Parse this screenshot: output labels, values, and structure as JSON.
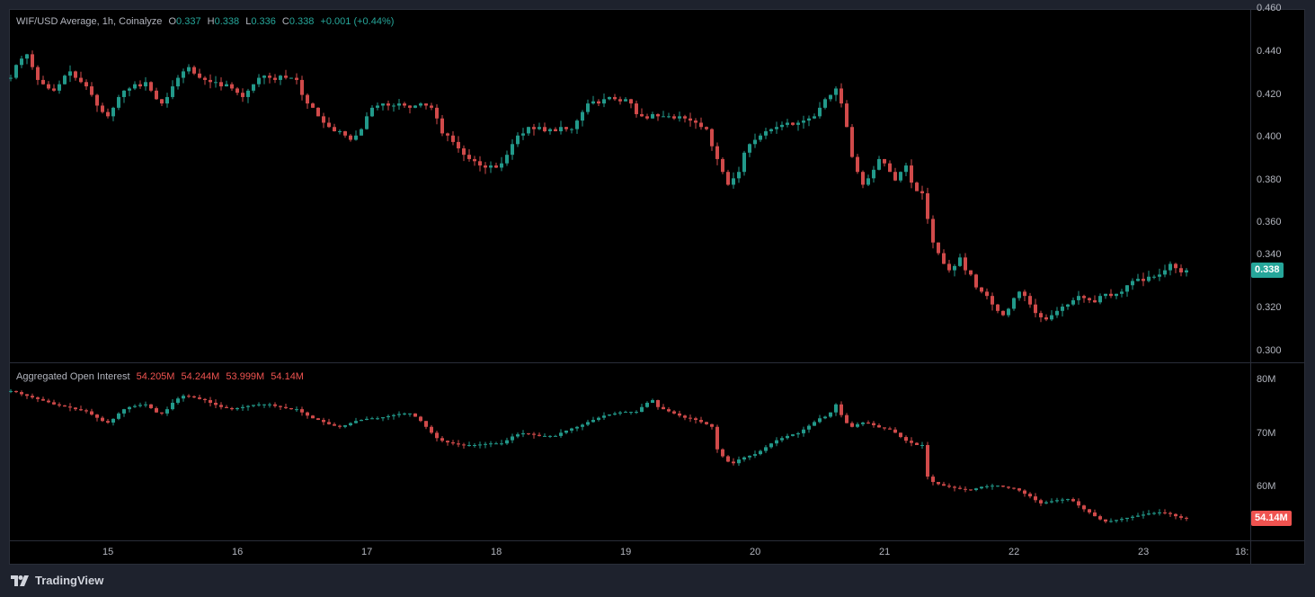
{
  "colors": {
    "up": "#22998a",
    "down": "#d04a4a",
    "up_badge": "#26a69a",
    "down_badge": "#ef5350"
  },
  "price_legend": {
    "title": "WIF/USD Average, 1h, Coinalyze",
    "o_label": "O",
    "o": "0.337",
    "h_label": "H",
    "h": "0.338",
    "l_label": "L",
    "l": "0.336",
    "c_label": "C",
    "c": "0.338",
    "change": "+0.001 (+0.44%)"
  },
  "oi_legend": {
    "title": "Aggregated Open Interest",
    "values": [
      "54.205M",
      "54.244M",
      "53.999M",
      "54.14M"
    ]
  },
  "footer": {
    "brand": "TradingView"
  },
  "chart_data": [
    {
      "type": "candlestick",
      "title": "WIF/USD Average, 1h, Coinalyze",
      "interval": "1h",
      "ylim": [
        0.3,
        0.46
      ],
      "y_ticks": [
        "0.300",
        "0.320",
        "0.340",
        "0.360",
        "0.380",
        "0.400",
        "0.420",
        "0.440",
        "0.460"
      ],
      "last_value_label": "0.338",
      "last_value": 0.338,
      "close": [
        0.428,
        0.434,
        0.437,
        0.439,
        0.433,
        0.427,
        0.425,
        0.423,
        0.422,
        0.425,
        0.429,
        0.431,
        0.428,
        0.426,
        0.424,
        0.42,
        0.415,
        0.412,
        0.41,
        0.414,
        0.419,
        0.422,
        0.423,
        0.425,
        0.424,
        0.426,
        0.422,
        0.418,
        0.416,
        0.419,
        0.424,
        0.428,
        0.431,
        0.433,
        0.43,
        0.428,
        0.427,
        0.426,
        0.426,
        0.424,
        0.425,
        0.423,
        0.421,
        0.419,
        0.422,
        0.425,
        0.428,
        0.429,
        0.428,
        0.427,
        0.429,
        0.428,
        0.428,
        0.427,
        0.42,
        0.416,
        0.414,
        0.41,
        0.407,
        0.405,
        0.403,
        0.403,
        0.401,
        0.399,
        0.401,
        0.404,
        0.41,
        0.414,
        0.415,
        0.416,
        0.415,
        0.415,
        0.416,
        0.415,
        0.414,
        0.415,
        0.416,
        0.415,
        0.414,
        0.409,
        0.402,
        0.401,
        0.398,
        0.395,
        0.392,
        0.39,
        0.389,
        0.387,
        0.386,
        0.387,
        0.386,
        0.388,
        0.392,
        0.397,
        0.401,
        0.402,
        0.405,
        0.404,
        0.405,
        0.403,
        0.404,
        0.403,
        0.405,
        0.404,
        0.404,
        0.408,
        0.412,
        0.416,
        0.417,
        0.416,
        0.418,
        0.419,
        0.418,
        0.417,
        0.418,
        0.416,
        0.411,
        0.41,
        0.409,
        0.411,
        0.41,
        0.41,
        0.41,
        0.409,
        0.41,
        0.409,
        0.408,
        0.407,
        0.405,
        0.404,
        0.396,
        0.39,
        0.384,
        0.378,
        0.381,
        0.384,
        0.393,
        0.397,
        0.399,
        0.401,
        0.403,
        0.404,
        0.405,
        0.406,
        0.407,
        0.406,
        0.407,
        0.408,
        0.409,
        0.41,
        0.414,
        0.418,
        0.42,
        0.423,
        0.416,
        0.405,
        0.391,
        0.384,
        0.378,
        0.381,
        0.385,
        0.39,
        0.388,
        0.384,
        0.38,
        0.384,
        0.387,
        0.379,
        0.375,
        0.374,
        0.362,
        0.351,
        0.346,
        0.341,
        0.338,
        0.34,
        0.344,
        0.338,
        0.336,
        0.33,
        0.328,
        0.326,
        0.322,
        0.319,
        0.317,
        0.32,
        0.325,
        0.328,
        0.326,
        0.322,
        0.318,
        0.316,
        0.315,
        0.317,
        0.319,
        0.321,
        0.322,
        0.324,
        0.326,
        0.325,
        0.324,
        0.323,
        0.326,
        0.327,
        0.326,
        0.327,
        0.328,
        0.331,
        0.333,
        0.334,
        0.333,
        0.335,
        0.335,
        0.336,
        0.338,
        0.341,
        0.339,
        0.337,
        0.338
      ]
    },
    {
      "type": "candlestick",
      "title": "Aggregated Open Interest",
      "unit": "M",
      "ylim": [
        52,
        82
      ],
      "y_ticks": [
        "60M",
        "70M",
        "80M"
      ],
      "y_tick_values": [
        60,
        70,
        80
      ],
      "last_value_label": "54.14M",
      "last_value": 54.14,
      "close": [
        78.0,
        77.8,
        77.4,
        77.1,
        76.8,
        76.5,
        76.2,
        75.9,
        75.5,
        75.3,
        75.1,
        74.9,
        74.6,
        74.4,
        74.2,
        73.6,
        73.0,
        72.4,
        72.1,
        72.8,
        73.8,
        74.6,
        75.0,
        75.2,
        75.4,
        75.5,
        74.8,
        74.0,
        73.8,
        74.6,
        75.8,
        76.6,
        77.1,
        77.0,
        76.8,
        76.5,
        76.3,
        75.8,
        75.4,
        75.0,
        74.8,
        74.6,
        74.8,
        75.0,
        75.2,
        75.4,
        75.5,
        75.5,
        75.5,
        75.2,
        75.0,
        74.8,
        74.6,
        74.6,
        74.0,
        73.4,
        72.9,
        72.6,
        72.2,
        71.8,
        71.5,
        71.3,
        71.6,
        72.0,
        72.4,
        72.6,
        72.8,
        72.9,
        72.9,
        73.1,
        73.3,
        73.5,
        73.7,
        73.8,
        73.8,
        73.2,
        72.4,
        71.3,
        70.2,
        69.2,
        68.7,
        68.4,
        68.2,
        68.0,
        67.9,
        67.9,
        67.9,
        68.0,
        68.1,
        68.2,
        68.2,
        68.2,
        68.8,
        69.5,
        69.9,
        70.1,
        70.0,
        69.8,
        69.6,
        69.6,
        69.6,
        69.6,
        70.2,
        70.6,
        71.0,
        71.3,
        71.7,
        72.2,
        72.6,
        73.0,
        73.4,
        73.6,
        73.8,
        74.0,
        74.1,
        74.1,
        74.1,
        75.0,
        75.8,
        76.3,
        75.0,
        74.6,
        74.2,
        73.8,
        73.4,
        73.0,
        72.9,
        72.6,
        72.2,
        71.8,
        71.3,
        67.1,
        65.8,
        64.8,
        64.5,
        65.2,
        65.6,
        65.9,
        66.2,
        66.8,
        67.5,
        68.2,
        68.8,
        69.2,
        69.6,
        69.9,
        70.1,
        70.8,
        71.5,
        72.2,
        72.9,
        73.2,
        74.0,
        75.5,
        73.5,
        72.0,
        71.3,
        71.8,
        72.1,
        72.0,
        71.6,
        71.2,
        71.0,
        70.8,
        70.2,
        69.4,
        68.7,
        68.3,
        67.9,
        67.9,
        62.0,
        61.0,
        60.6,
        60.3,
        60.1,
        59.9,
        59.7,
        59.6,
        59.5,
        59.8,
        60.1,
        60.2,
        60.3,
        60.3,
        60.1,
        59.9,
        59.8,
        59.4,
        58.8,
        58.3,
        57.6,
        57.0,
        57.2,
        57.4,
        57.6,
        57.7,
        57.8,
        57.4,
        56.6,
        55.9,
        55.3,
        54.6,
        54.0,
        53.6,
        53.7,
        53.9,
        54.1,
        54.3,
        54.5,
        54.7,
        54.9,
        55.1,
        55.2,
        55.3,
        55.2,
        55.0,
        54.6,
        54.3,
        54.14
      ]
    }
  ],
  "x_axis": {
    "labels": [
      "15",
      "16",
      "17",
      "18",
      "19",
      "20",
      "21",
      "22",
      "23",
      "18:"
    ],
    "hour_index": [
      18,
      42,
      66,
      90,
      114,
      138,
      162,
      186,
      210,
      228
    ]
  }
}
